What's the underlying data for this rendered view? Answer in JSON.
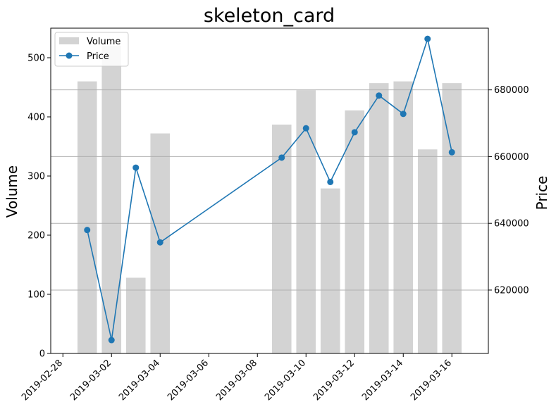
{
  "chart_data": {
    "type": "bar+line",
    "title": "skeleton_card",
    "x_tick_labels": [
      "2019-02-28",
      "2019-03-02",
      "2019-03-04",
      "2019-03-06",
      "2019-03-08",
      "2019-03-10",
      "2019-03-12",
      "2019-03-14",
      "2019-03-16"
    ],
    "legend": {
      "placement": "upper-left",
      "entries": [
        "Volume",
        "Price"
      ]
    },
    "left_axis": {
      "label": "Volume",
      "ylim": [
        0,
        550
      ],
      "ticks": [
        "0",
        "100",
        "200",
        "300",
        "400",
        "500"
      ]
    },
    "right_axis": {
      "label": "Price",
      "ylim": [
        601000,
        698500
      ],
      "ticks": [
        "620000",
        "640000",
        "660000",
        "680000"
      ],
      "grid": true
    },
    "series": [
      {
        "name": "Volume",
        "kind": "bar",
        "axis": "left",
        "color": "#d3d3d3",
        "dates": [
          "2019-03-01",
          "2019-03-02",
          "2019-03-03",
          "2019-03-04",
          "2019-03-09",
          "2019-03-10",
          "2019-03-11",
          "2019-03-12",
          "2019-03-13",
          "2019-03-14",
          "2019-03-15",
          "2019-03-16"
        ],
        "values": [
          460,
          520,
          128,
          372,
          387,
          445,
          279,
          411,
          457,
          460,
          345,
          457
        ]
      },
      {
        "name": "Price",
        "kind": "line",
        "axis": "right",
        "color": "#1f77b4",
        "dates": [
          "2019-03-01",
          "2019-03-02",
          "2019-03-03",
          "2019-03-04",
          "2019-03-09",
          "2019-03-10",
          "2019-03-11",
          "2019-03-12",
          "2019-03-13",
          "2019-03-14",
          "2019-03-15",
          "2019-03-16"
        ],
        "values": [
          638000,
          605000,
          656700,
          634300,
          659700,
          668500,
          652400,
          667300,
          678300,
          672800,
          695300,
          661300
        ]
      }
    ]
  }
}
